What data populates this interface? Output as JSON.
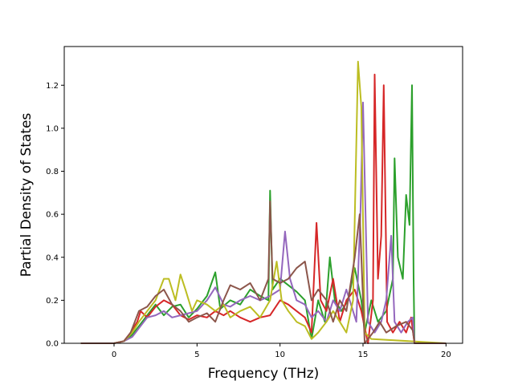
{
  "chart_data": {
    "type": "line",
    "title": "",
    "xlabel": "Frequency (THz)",
    "ylabel": "Partial Density of States",
    "xlim": [
      -3,
      21
    ],
    "ylim": [
      0,
      1.38
    ],
    "xticks": [
      0,
      5,
      10,
      15,
      20
    ],
    "xtick_labels": [
      "0",
      "5",
      "10",
      "15",
      "20"
    ],
    "yticks": [
      0.0,
      0.2,
      0.4,
      0.6,
      0.8,
      1.0,
      1.2
    ],
    "ytick_labels": [
      "0.0",
      "0.2",
      "0.4",
      "0.6",
      "0.8",
      "1.0",
      "1.2"
    ],
    "grid": false,
    "legend": "none",
    "series": [
      {
        "color": "#2ca02c",
        "points": [
          [
            -2,
            0
          ],
          [
            0,
            0
          ],
          [
            0.6,
            0.01
          ],
          [
            1.1,
            0.04
          ],
          [
            1.5,
            0.08
          ],
          [
            2,
            0.13
          ],
          [
            2.5,
            0.18
          ],
          [
            3,
            0.13
          ],
          [
            3.5,
            0.17
          ],
          [
            4,
            0.18
          ],
          [
            4.5,
            0.12
          ],
          [
            5,
            0.16
          ],
          [
            5.6,
            0.22
          ],
          [
            6.1,
            0.33
          ],
          [
            6.4,
            0.16
          ],
          [
            7,
            0.2
          ],
          [
            7.6,
            0.18
          ],
          [
            8.2,
            0.25
          ],
          [
            8.8,
            0.22
          ],
          [
            9.3,
            0.2
          ],
          [
            9.4,
            0.71
          ],
          [
            9.55,
            0.25
          ],
          [
            10,
            0.3
          ],
          [
            10.5,
            0.27
          ],
          [
            11,
            0.24
          ],
          [
            11.5,
            0.2
          ],
          [
            11.9,
            0.02
          ],
          [
            12.3,
            0.2
          ],
          [
            12.7,
            0.1
          ],
          [
            13,
            0.4
          ],
          [
            13.3,
            0.2
          ],
          [
            13.7,
            0.15
          ],
          [
            14.1,
            0.2
          ],
          [
            14.5,
            0.35
          ],
          [
            14.9,
            0.2
          ],
          [
            15.1,
            0.05
          ],
          [
            15.5,
            0.2
          ],
          [
            15.9,
            0.1
          ],
          [
            16.4,
            0.15
          ],
          [
            16.8,
            0.3
          ],
          [
            16.9,
            0.86
          ],
          [
            17.1,
            0.4
          ],
          [
            17.4,
            0.3
          ],
          [
            17.6,
            0.69
          ],
          [
            17.8,
            0.55
          ],
          [
            17.95,
            1.2
          ],
          [
            18.05,
            0.3
          ],
          [
            18.1,
            0.0
          ],
          [
            20,
            0
          ]
        ]
      },
      {
        "color": "#d62728",
        "points": [
          [
            -2,
            0
          ],
          [
            0,
            0
          ],
          [
            0.6,
            0.01
          ],
          [
            1,
            0.05
          ],
          [
            1.4,
            0.1
          ],
          [
            1.6,
            0.15
          ],
          [
            2,
            0.12
          ],
          [
            2.5,
            0.17
          ],
          [
            3,
            0.2
          ],
          [
            3.5,
            0.18
          ],
          [
            4,
            0.13
          ],
          [
            4.5,
            0.11
          ],
          [
            5,
            0.13
          ],
          [
            5.6,
            0.12
          ],
          [
            6.1,
            0.15
          ],
          [
            6.6,
            0.13
          ],
          [
            7,
            0.15
          ],
          [
            7.6,
            0.12
          ],
          [
            8.2,
            0.1
          ],
          [
            8.8,
            0.12
          ],
          [
            9.4,
            0.13
          ],
          [
            10,
            0.2
          ],
          [
            10.5,
            0.18
          ],
          [
            11,
            0.15
          ],
          [
            11.5,
            0.12
          ],
          [
            11.9,
            0.05
          ],
          [
            12.2,
            0.56
          ],
          [
            12.45,
            0.2
          ],
          [
            12.8,
            0.15
          ],
          [
            13.2,
            0.3
          ],
          [
            13.6,
            0.1
          ],
          [
            14,
            0.2
          ],
          [
            14.5,
            0.25
          ],
          [
            14.9,
            0.15
          ],
          [
            15.3,
            0.0
          ],
          [
            15.6,
            0.2
          ],
          [
            15.7,
            1.25
          ],
          [
            15.9,
            0.3
          ],
          [
            16.1,
            0.5
          ],
          [
            16.25,
            1.2
          ],
          [
            16.45,
            0.1
          ],
          [
            16.8,
            0.05
          ],
          [
            17.2,
            0.1
          ],
          [
            17.6,
            0.05
          ],
          [
            17.9,
            0.12
          ],
          [
            18.1,
            0.0
          ],
          [
            20,
            0
          ]
        ]
      },
      {
        "color": "#9467bd",
        "points": [
          [
            -2,
            0
          ],
          [
            0,
            0
          ],
          [
            0.6,
            0.01
          ],
          [
            1.1,
            0.03
          ],
          [
            1.5,
            0.07
          ],
          [
            2,
            0.12
          ],
          [
            2.5,
            0.13
          ],
          [
            3,
            0.15
          ],
          [
            3.5,
            0.12
          ],
          [
            4,
            0.13
          ],
          [
            4.5,
            0.14
          ],
          [
            5,
            0.15
          ],
          [
            5.6,
            0.2
          ],
          [
            6.1,
            0.26
          ],
          [
            6.6,
            0.18
          ],
          [
            7,
            0.17
          ],
          [
            7.6,
            0.2
          ],
          [
            8.2,
            0.22
          ],
          [
            8.8,
            0.2
          ],
          [
            9.4,
            0.22
          ],
          [
            10,
            0.25
          ],
          [
            10.3,
            0.52
          ],
          [
            10.6,
            0.3
          ],
          [
            11,
            0.2
          ],
          [
            11.5,
            0.18
          ],
          [
            11.9,
            0.12
          ],
          [
            12.3,
            0.15
          ],
          [
            12.8,
            0.1
          ],
          [
            13.2,
            0.2
          ],
          [
            13.6,
            0.15
          ],
          [
            14,
            0.25
          ],
          [
            14.6,
            0.1
          ],
          [
            14.85,
            0.62
          ],
          [
            15.0,
            1.12
          ],
          [
            15.3,
            0.1
          ],
          [
            15.7,
            0.05
          ],
          [
            16.1,
            0.1
          ],
          [
            16.4,
            0.2
          ],
          [
            16.7,
            0.5
          ],
          [
            16.9,
            0.1
          ],
          [
            17.3,
            0.05
          ],
          [
            17.7,
            0.1
          ],
          [
            18,
            0.12
          ],
          [
            18.1,
            0.0
          ],
          [
            20,
            0
          ]
        ]
      },
      {
        "color": "#bcbd22",
        "points": [
          [
            -2,
            0
          ],
          [
            0,
            0
          ],
          [
            0.6,
            0.01
          ],
          [
            1.1,
            0.05
          ],
          [
            1.5,
            0.1
          ],
          [
            2,
            0.15
          ],
          [
            2.5,
            0.2
          ],
          [
            3,
            0.3
          ],
          [
            3.3,
            0.3
          ],
          [
            3.7,
            0.2
          ],
          [
            4,
            0.32
          ],
          [
            4.3,
            0.25
          ],
          [
            4.7,
            0.15
          ],
          [
            5,
            0.2
          ],
          [
            5.6,
            0.18
          ],
          [
            6.1,
            0.15
          ],
          [
            6.6,
            0.18
          ],
          [
            7,
            0.12
          ],
          [
            7.6,
            0.15
          ],
          [
            8.2,
            0.17
          ],
          [
            8.8,
            0.12
          ],
          [
            9.4,
            0.2
          ],
          [
            9.8,
            0.38
          ],
          [
            10.1,
            0.2
          ],
          [
            10.5,
            0.15
          ],
          [
            11,
            0.1
          ],
          [
            11.5,
            0.08
          ],
          [
            11.9,
            0.02
          ],
          [
            12.3,
            0.05
          ],
          [
            12.8,
            0.1
          ],
          [
            13.2,
            0.15
          ],
          [
            13.6,
            0.1
          ],
          [
            14,
            0.05
          ],
          [
            14.4,
            0.2
          ],
          [
            14.7,
            1.31
          ],
          [
            14.9,
            1.1
          ],
          [
            15.1,
            0.05
          ],
          [
            15.5,
            0.02
          ],
          [
            20,
            0
          ]
        ]
      },
      {
        "color": "#8c564b",
        "points": [
          [
            -2,
            0
          ],
          [
            0,
            0
          ],
          [
            0.6,
            0.01
          ],
          [
            1,
            0.05
          ],
          [
            1.5,
            0.15
          ],
          [
            2,
            0.17
          ],
          [
            2.5,
            0.22
          ],
          [
            3,
            0.25
          ],
          [
            3.5,
            0.18
          ],
          [
            4,
            0.15
          ],
          [
            4.5,
            0.1
          ],
          [
            5,
            0.12
          ],
          [
            5.6,
            0.14
          ],
          [
            6.1,
            0.1
          ],
          [
            6.6,
            0.2
          ],
          [
            7,
            0.27
          ],
          [
            7.6,
            0.25
          ],
          [
            8.2,
            0.28
          ],
          [
            8.8,
            0.2
          ],
          [
            9.3,
            0.3
          ],
          [
            9.4,
            0.66
          ],
          [
            9.55,
            0.3
          ],
          [
            10,
            0.28
          ],
          [
            10.5,
            0.3
          ],
          [
            11,
            0.35
          ],
          [
            11.5,
            0.38
          ],
          [
            11.9,
            0.2
          ],
          [
            12.3,
            0.25
          ],
          [
            12.8,
            0.2
          ],
          [
            13.2,
            0.1
          ],
          [
            13.6,
            0.2
          ],
          [
            14,
            0.15
          ],
          [
            14.5,
            0.4
          ],
          [
            14.8,
            0.6
          ],
          [
            14.95,
            0.3
          ],
          [
            15.1,
            0.0
          ],
          [
            15.6,
            0.05
          ],
          [
            16,
            0.1
          ],
          [
            16.4,
            0.05
          ],
          [
            17,
            0.08
          ],
          [
            17.6,
            0.1
          ],
          [
            18,
            0.06
          ],
          [
            18.1,
            0.0
          ],
          [
            20,
            0
          ]
        ]
      }
    ]
  }
}
